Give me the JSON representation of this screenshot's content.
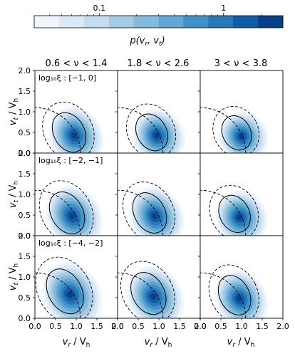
{
  "colorbar": {
    "label": "p(v_r, v_t)",
    "ticks": [
      {
        "value": 0.1,
        "label": "0.1"
      },
      {
        "value": 1,
        "label": "1"
      }
    ],
    "range": [
      0.03,
      3.0
    ],
    "scale": "log",
    "colors": [
      "#eff5fc",
      "#dbe8f6",
      "#c5dbef",
      "#a6cce4",
      "#84bbdc",
      "#60a7d3",
      "#4190c6",
      "#2878b8",
      "#115ca4",
      "#083f88"
    ]
  },
  "chart_data": {
    "type": "heatmap",
    "grid": {
      "rows": 3,
      "cols": 3
    },
    "column_titles": [
      "0.6 < ν < 1.4",
      "1.8 < ν < 2.6",
      "3 < ν < 3.8"
    ],
    "row_labels": [
      "log₁₀ξ : [−1, 0]",
      "log₁₀ξ : [−2, −1]",
      "log₁₀ξ : [−4, −2]"
    ],
    "xlabel": "v_r / V_h",
    "ylabel": "v_t / V_h",
    "xlim": [
      0,
      2.0
    ],
    "ylim": [
      0,
      2.0
    ],
    "xticks": [
      "0.0",
      "0.5",
      "1.0",
      "1.5",
      "2.0"
    ],
    "yticks": [
      "0.0",
      "0.5",
      "1.0",
      "1.5",
      "2.0"
    ],
    "panels": [
      {
        "row": 0,
        "col": 0,
        "peak": [
          1.0,
          0.4
        ],
        "spread": [
          0.6,
          0.7
        ],
        "tilt": -0.55
      },
      {
        "row": 0,
        "col": 1,
        "peak": [
          1.0,
          0.4
        ],
        "spread": [
          0.58,
          0.65
        ],
        "tilt": -0.55
      },
      {
        "row": 0,
        "col": 2,
        "peak": [
          1.05,
          0.38
        ],
        "spread": [
          0.55,
          0.6
        ],
        "tilt": -0.5
      },
      {
        "row": 1,
        "col": 0,
        "peak": [
          0.95,
          0.45
        ],
        "spread": [
          0.62,
          0.75
        ],
        "tilt": -0.55
      },
      {
        "row": 1,
        "col": 1,
        "peak": [
          0.95,
          0.45
        ],
        "spread": [
          0.6,
          0.72
        ],
        "tilt": -0.55
      },
      {
        "row": 1,
        "col": 2,
        "peak": [
          1.0,
          0.42
        ],
        "spread": [
          0.58,
          0.65
        ],
        "tilt": -0.5
      },
      {
        "row": 2,
        "col": 0,
        "peak": [
          0.9,
          0.55
        ],
        "spread": [
          0.65,
          0.8
        ],
        "tilt": -0.55
      },
      {
        "row": 2,
        "col": 1,
        "peak": [
          0.92,
          0.5
        ],
        "spread": [
          0.62,
          0.75
        ],
        "tilt": -0.55
      },
      {
        "row": 2,
        "col": 2,
        "peak": [
          1.0,
          0.45
        ],
        "spread": [
          0.58,
          0.7
        ],
        "tilt": -0.5
      }
    ],
    "circle_radius": 1.1
  }
}
